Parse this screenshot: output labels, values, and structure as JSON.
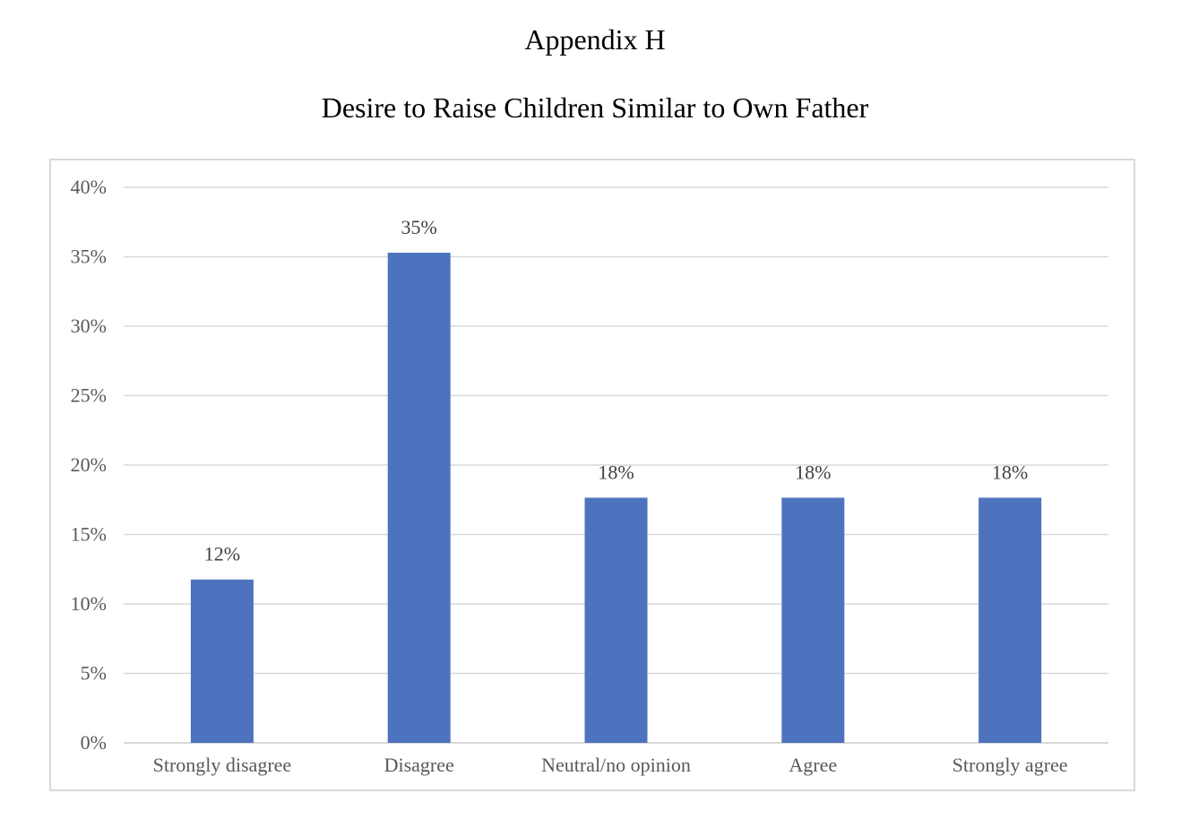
{
  "page": {
    "heading": "Appendix H"
  },
  "chart_data": {
    "type": "bar",
    "title": "Desire to Raise Children Similar to Own Father",
    "xlabel": "",
    "ylabel": "",
    "categories": [
      "Strongly disagree",
      "Disagree",
      "Neutral/no opinion",
      "Agree",
      "Strongly agree"
    ],
    "values": [
      11.76,
      35.29,
      17.65,
      17.65,
      17.65
    ],
    "data_labels": [
      "12%",
      "35%",
      "18%",
      "18%",
      "18%"
    ],
    "ylim": [
      0,
      40
    ],
    "y_ticks": [
      0,
      5,
      10,
      15,
      20,
      25,
      30,
      35,
      40
    ],
    "y_tick_labels": [
      "0%",
      "5%",
      "10%",
      "15%",
      "20%",
      "25%",
      "30%",
      "35%",
      "40%"
    ],
    "grid": true,
    "legend": "none",
    "colors": {
      "bar": "#4e73be",
      "grid": "#d9d9d9",
      "axis": "#d9d9d9",
      "tick_text": "#595959",
      "label_text": "#404040"
    }
  }
}
